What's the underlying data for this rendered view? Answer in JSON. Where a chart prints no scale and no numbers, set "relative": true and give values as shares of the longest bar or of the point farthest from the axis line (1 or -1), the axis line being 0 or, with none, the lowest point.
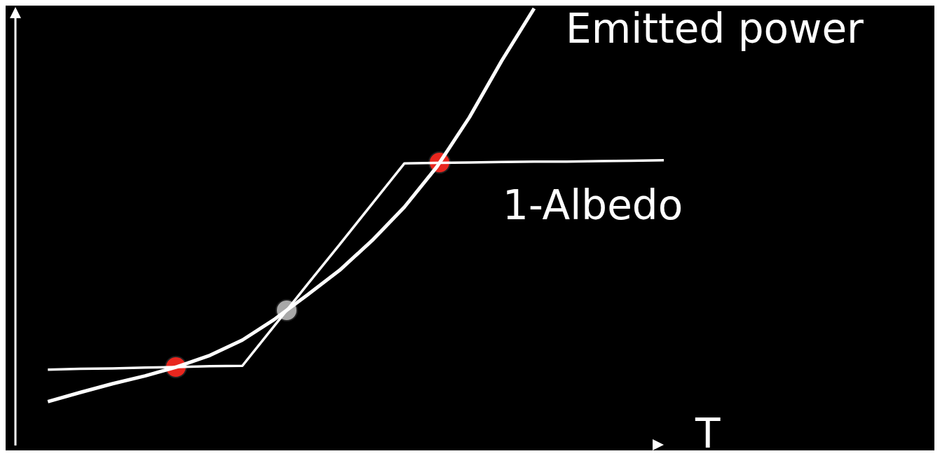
{
  "chart_data": {
    "type": "line",
    "relative": true,
    "xlabel": "T",
    "categories": [
      null,
      null,
      null,
      null,
      null,
      null,
      null,
      null,
      null,
      null,
      null,
      null,
      null,
      null,
      null,
      null,
      null,
      null,
      null,
      null,
      null
    ],
    "series": [
      {
        "name": "Emitted power",
        "color": "#ffffff",
        "values": [
          null,
          0.099,
          0.12,
          0.14,
          0.158,
          0.179,
          0.205,
          0.24,
          0.288,
          0.343,
          0.4,
          0.468,
          0.545,
          0.637,
          0.75,
          0.88,
          1,
          null,
          null,
          null,
          null
        ]
      },
      {
        "name": "1-Albedo",
        "color": "#ffffff",
        "values": [
          null,
          0.172,
          0.174,
          0.175,
          0.177,
          0.178,
          0.18,
          0.181,
          0.274,
          0.367,
          0.459,
          0.552,
          0.645,
          0.646,
          0.647,
          0.648,
          0.649,
          0.649,
          0.65,
          0.651,
          0.652
        ]
      }
    ]
  }
}
